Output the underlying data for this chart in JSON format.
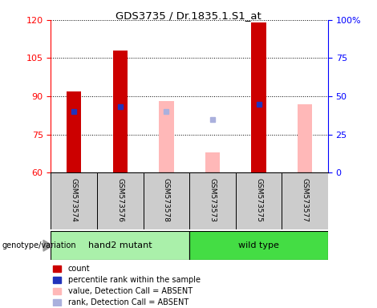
{
  "title": "GDS3735 / Dr.1835.1.S1_at",
  "samples": [
    "GSM573574",
    "GSM573576",
    "GSM573578",
    "GSM573573",
    "GSM573575",
    "GSM573577"
  ],
  "ylim_left": [
    60,
    120
  ],
  "ylim_right": [
    0,
    100
  ],
  "yticks_left": [
    60,
    75,
    90,
    105,
    120
  ],
  "yticks_right": [
    0,
    25,
    50,
    75,
    100
  ],
  "ytick_labels_right": [
    "0",
    "25",
    "50",
    "75",
    "100%"
  ],
  "bar_bottom": 60,
  "red_bars": {
    "GSM573574": 92,
    "GSM573576": 108,
    "GSM573578": null,
    "GSM573573": null,
    "GSM573575": 119,
    "GSM573577": null
  },
  "blue_squares": {
    "GSM573574": 84,
    "GSM573576": 86,
    "GSM573578": null,
    "GSM573573": null,
    "GSM573575": 87,
    "GSM573577": null
  },
  "pink_bars": {
    "GSM573574": null,
    "GSM573576": null,
    "GSM573578": 88,
    "GSM573573": 68,
    "GSM573575": null,
    "GSM573577": 87
  },
  "lightblue_squares": {
    "GSM573574": null,
    "GSM573576": null,
    "GSM573578": 84,
    "GSM573573": 81,
    "GSM573575": null,
    "GSM573577": null
  },
  "colors": {
    "red_bar": "#cc0000",
    "blue_sq": "#2233bb",
    "pink_bar": "#ffb8b8",
    "lightblue_sq": "#aab0dd",
    "group_hand2": "#aaf0aa",
    "group_wild": "#44dd44",
    "bg_label": "#cccccc",
    "bg_plot": "#ffffff"
  },
  "legend": [
    {
      "label": "count",
      "color": "#cc0000"
    },
    {
      "label": "percentile rank within the sample",
      "color": "#2233bb"
    },
    {
      "label": "value, Detection Call = ABSENT",
      "color": "#ffb8b8"
    },
    {
      "label": "rank, Detection Call = ABSENT",
      "color": "#aab0dd"
    }
  ],
  "bar_width": 0.32
}
